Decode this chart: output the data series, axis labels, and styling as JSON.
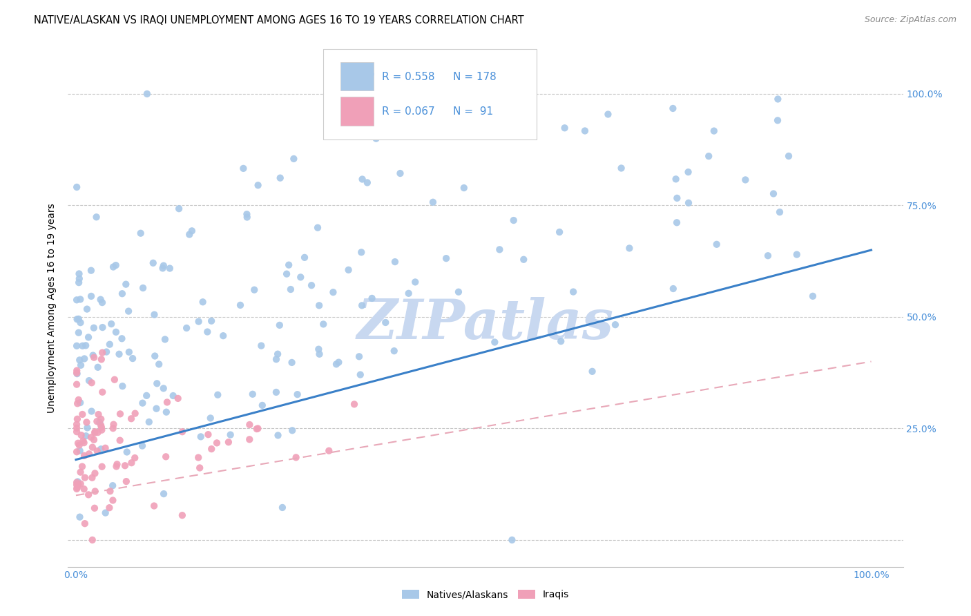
{
  "title": "NATIVE/ALASKAN VS IRAQI UNEMPLOYMENT AMONG AGES 16 TO 19 YEARS CORRELATION CHART",
  "source": "Source: ZipAtlas.com",
  "ylabel": "Unemployment Among Ages 16 to 19 years",
  "legend_label1": "Natives/Alaskans",
  "legend_label2": "Iraqis",
  "r1": "0.558",
  "n1": "178",
  "r2": "0.067",
  "n2": " 91",
  "color_blue": "#A8C8E8",
  "color_pink": "#F0A0B8",
  "color_blue_dark": "#3A80C8",
  "color_pink_line": "#E8A8B8",
  "color_blue_text": "#4A90D9",
  "watermark_color": "#C8D8F0",
  "background": "#FFFFFF",
  "grid_color": "#C8C8C8",
  "nat_seed": 12,
  "irq_seed": 7,
  "n_nat": 178,
  "n_irq": 91,
  "r_nat": 0.558,
  "r_irq": 0.067
}
